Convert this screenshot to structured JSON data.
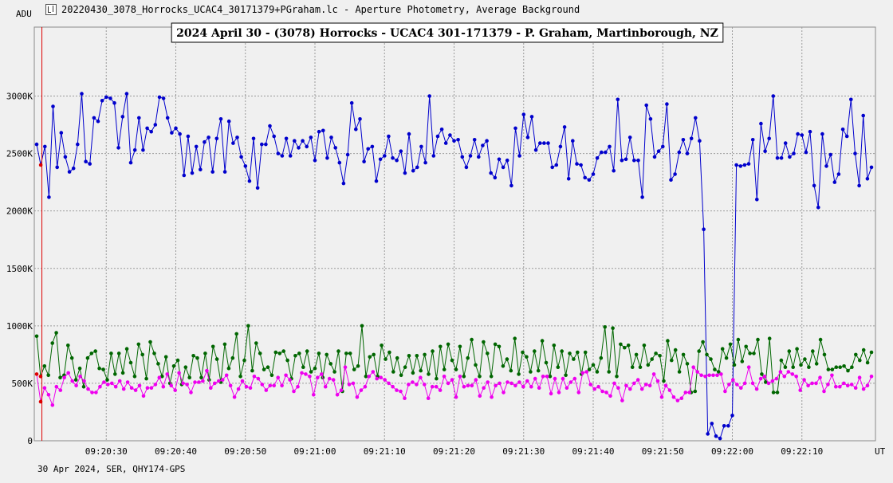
{
  "window": {
    "title": "20220430_3078_Horrocks_UCAC4_30171379+PGraham.lc - Aperture Photometry, Average Background"
  },
  "chart_data": {
    "type": "line",
    "title": "2024 April 30 - (3078) Horrocks - UCAC4 301-171379 - P. Graham, Martinborough, NZ",
    "ylabel": "ADU",
    "xlabel": "UT",
    "footer": "30 Apr 2024, SER, QHY174-GPS",
    "ylim": [
      0,
      3600000
    ],
    "y_ticks": [
      {
        "value": 0,
        "label": "0"
      },
      {
        "value": 500000,
        "label": "500K"
      },
      {
        "value": 1000000,
        "label": "1000K"
      },
      {
        "value": 1500000,
        "label": "1500K"
      },
      {
        "value": 2000000,
        "label": "2000K"
      },
      {
        "value": 2500000,
        "label": "2500K"
      },
      {
        "value": 3000000,
        "label": "3000K"
      }
    ],
    "xlim": [
      0,
      240
    ],
    "x_ticks": [
      {
        "value": 20,
        "label": "09:20:30"
      },
      {
        "value": 40,
        "label": "09:20:40"
      },
      {
        "value": 60,
        "label": "09:20:50"
      },
      {
        "value": 80,
        "label": "09:21:00"
      },
      {
        "value": 100,
        "label": "09:21:10"
      },
      {
        "value": 120,
        "label": "09:21:20"
      },
      {
        "value": 140,
        "label": "09:21:30"
      },
      {
        "value": 160,
        "label": "09:21:40"
      },
      {
        "value": 180,
        "label": "09:21:50"
      },
      {
        "value": 200,
        "label": "09:22:00"
      },
      {
        "value": 220,
        "label": "09:22:10"
      }
    ],
    "marker": {
      "x": 1.5,
      "color": "#dd0000"
    },
    "grid": true,
    "series": [
      {
        "color": "#0000cc",
        "values": [
          2580000,
          2400000,
          2560000,
          2120000,
          2910000,
          2380000,
          2680000,
          2470000,
          2340000,
          2370000,
          2580000,
          3020000,
          2430000,
          2410000,
          2810000,
          2780000,
          2960000,
          2990000,
          2980000,
          2940000,
          2550000,
          2820000,
          3020000,
          2420000,
          2530000,
          2810000,
          2530000,
          2720000,
          2690000,
          2750000,
          2990000,
          2980000,
          2810000,
          2680000,
          2720000,
          2670000,
          2310000,
          2650000,
          2330000,
          2560000,
          2360000,
          2600000,
          2640000,
          2340000,
          2630000,
          2800000,
          2340000,
          2780000,
          2590000,
          2640000,
          2470000,
          2390000,
          2260000,
          2630000,
          2200000,
          2580000,
          2580000,
          2740000,
          2650000,
          2500000,
          2480000,
          2630000,
          2480000,
          2610000,
          2550000,
          2610000,
          2560000,
          2640000,
          2440000,
          2690000,
          2700000,
          2460000,
          2640000,
          2550000,
          2420000,
          2240000,
          2490000,
          2940000,
          2710000,
          2800000,
          2430000,
          2540000,
          2560000,
          2260000,
          2450000,
          2480000,
          2650000,
          2460000,
          2440000,
          2520000,
          2330000,
          2670000,
          2350000,
          2380000,
          2560000,
          2420000,
          3000000,
          2480000,
          2650000,
          2710000,
          2590000,
          2660000,
          2610000,
          2620000,
          2470000,
          2380000,
          2480000,
          2620000,
          2470000,
          2570000,
          2610000,
          2330000,
          2290000,
          2450000,
          2380000,
          2440000,
          2220000,
          2720000,
          2480000,
          2840000,
          2640000,
          2820000,
          2530000,
          2590000,
          2590000,
          2590000,
          2380000,
          2400000,
          2560000,
          2730000,
          2280000,
          2610000,
          2410000,
          2400000,
          2290000,
          2270000,
          2320000,
          2460000,
          2510000,
          2510000,
          2560000,
          2350000,
          2970000,
          2440000,
          2450000,
          2640000,
          2440000,
          2440000,
          2120000,
          2920000,
          2800000,
          2470000,
          2520000,
          2560000,
          2930000,
          2270000,
          2320000,
          2510000,
          2620000,
          2500000,
          2630000,
          2810000,
          2610000,
          1840000,
          60000,
          150000,
          40000,
          20000,
          130000,
          130000,
          220000,
          2400000,
          2390000,
          2400000,
          2410000,
          2620000,
          2100000,
          2760000,
          2520000,
          2630000,
          3000000,
          2460000,
          2460000,
          2590000,
          2470000,
          2500000,
          2670000,
          2660000,
          2510000,
          2690000,
          2220000,
          2030000,
          2670000,
          2390000,
          2490000,
          2250000,
          2320000,
          2710000,
          2650000,
          2970000,
          2500000,
          2220000,
          2830000,
          2280000,
          2380000
        ],
        "markers": [
          {
            "index": 1,
            "color": "#dd0000"
          }
        ]
      },
      {
        "color": "#006600",
        "values": [
          910000,
          560000,
          650000,
          570000,
          850000,
          940000,
          550000,
          570000,
          830000,
          720000,
          530000,
          630000,
          470000,
          720000,
          760000,
          780000,
          630000,
          620000,
          530000,
          760000,
          580000,
          760000,
          590000,
          800000,
          680000,
          560000,
          840000,
          750000,
          540000,
          860000,
          760000,
          670000,
          560000,
          730000,
          500000,
          650000,
          700000,
          490000,
          640000,
          550000,
          740000,
          720000,
          550000,
          760000,
          530000,
          820000,
          710000,
          510000,
          840000,
          630000,
          720000,
          930000,
          560000,
          700000,
          1000000,
          610000,
          850000,
          760000,
          620000,
          640000,
          570000,
          770000,
          760000,
          780000,
          700000,
          540000,
          740000,
          760000,
          640000,
          780000,
          600000,
          630000,
          760000,
          550000,
          750000,
          670000,
          600000,
          780000,
          430000,
          760000,
          760000,
          620000,
          650000,
          1000000,
          560000,
          730000,
          750000,
          560000,
          830000,
          710000,
          770000,
          600000,
          720000,
          570000,
          640000,
          740000,
          590000,
          740000,
          610000,
          750000,
          580000,
          780000,
          540000,
          820000,
          620000,
          840000,
          700000,
          620000,
          820000,
          560000,
          720000,
          880000,
          660000,
          560000,
          860000,
          760000,
          560000,
          840000,
          820000,
          650000,
          710000,
          610000,
          890000,
          580000,
          770000,
          730000,
          600000,
          780000,
          610000,
          870000,
          680000,
          560000,
          830000,
          640000,
          780000,
          570000,
          760000,
          710000,
          770000,
          580000,
          770000,
          620000,
          660000,
          600000,
          720000,
          990000,
          600000,
          980000,
          560000,
          840000,
          810000,
          830000,
          640000,
          750000,
          640000,
          830000,
          660000,
          710000,
          760000,
          740000,
          520000,
          870000,
          700000,
          790000,
          600000,
          750000,
          670000,
          420000,
          430000,
          780000,
          860000,
          750000,
          710000,
          620000,
          600000,
          800000,
          720000,
          840000,
          660000,
          880000,
          690000,
          820000,
          760000,
          760000,
          880000,
          580000,
          510000,
          890000,
          420000,
          420000,
          700000,
          640000,
          780000,
          640000,
          800000,
          660000,
          710000,
          640000,
          780000,
          670000,
          880000,
          750000,
          620000,
          620000,
          640000,
          640000,
          650000,
          610000,
          640000,
          750000,
          700000,
          790000,
          680000,
          770000
        ],
        "markers": [
          {
            "index": 1,
            "color": "#dd0000"
          }
        ]
      },
      {
        "color": "#ee00ee",
        "values": [
          580000,
          340000,
          460000,
          400000,
          310000,
          470000,
          440000,
          550000,
          590000,
          520000,
          480000,
          560000,
          520000,
          450000,
          420000,
          420000,
          470000,
          510000,
          490000,
          500000,
          470000,
          520000,
          450000,
          510000,
          460000,
          440000,
          480000,
          390000,
          460000,
          460000,
          490000,
          550000,
          470000,
          580000,
          480000,
          440000,
          590000,
          500000,
          490000,
          420000,
          510000,
          510000,
          520000,
          610000,
          460000,
          500000,
          520000,
          530000,
          570000,
          480000,
          380000,
          450000,
          520000,
          470000,
          460000,
          560000,
          540000,
          490000,
          440000,
          480000,
          480000,
          550000,
          480000,
          570000,
          530000,
          430000,
          470000,
          590000,
          580000,
          560000,
          400000,
          550000,
          580000,
          470000,
          540000,
          530000,
          400000,
          440000,
          640000,
          490000,
          500000,
          380000,
          440000,
          470000,
          560000,
          600000,
          540000,
          550000,
          530000,
          500000,
          470000,
          440000,
          430000,
          370000,
          490000,
          510000,
          490000,
          550000,
          490000,
          370000,
          470000,
          470000,
          440000,
          560000,
          500000,
          530000,
          380000,
          560000,
          470000,
          480000,
          480000,
          530000,
          390000,
          460000,
          510000,
          380000,
          480000,
          500000,
          420000,
          510000,
          500000,
          480000,
          510000,
          470000,
          520000,
          470000,
          540000,
          460000,
          560000,
          560000,
          410000,
          540000,
          420000,
          540000,
          460000,
          510000,
          540000,
          420000,
          590000,
          600000,
          490000,
          450000,
          470000,
          430000,
          420000,
          390000,
          500000,
          460000,
          350000,
          480000,
          450000,
          500000,
          530000,
          450000,
          490000,
          480000,
          580000,
          520000,
          380000,
          480000,
          440000,
          380000,
          350000,
          370000,
          420000,
          420000,
          640000,
          600000,
          570000,
          560000,
          570000,
          570000,
          570000,
          580000,
          430000,
          490000,
          530000,
          490000,
          460000,
          500000,
          640000,
          500000,
          450000,
          540000,
          560000,
          500000,
          520000,
          540000,
          600000,
          560000,
          600000,
          580000,
          560000,
          440000,
          530000,
          480000,
          500000,
          500000,
          550000,
          430000,
          490000,
          570000,
          470000,
          470000,
          500000,
          480000,
          490000,
          460000,
          550000,
          450000,
          480000,
          560000
        ],
        "markers": [
          {
            "index": 0,
            "color": "#dd0000"
          },
          {
            "index": 1,
            "color": "#dd0000"
          }
        ]
      }
    ]
  }
}
